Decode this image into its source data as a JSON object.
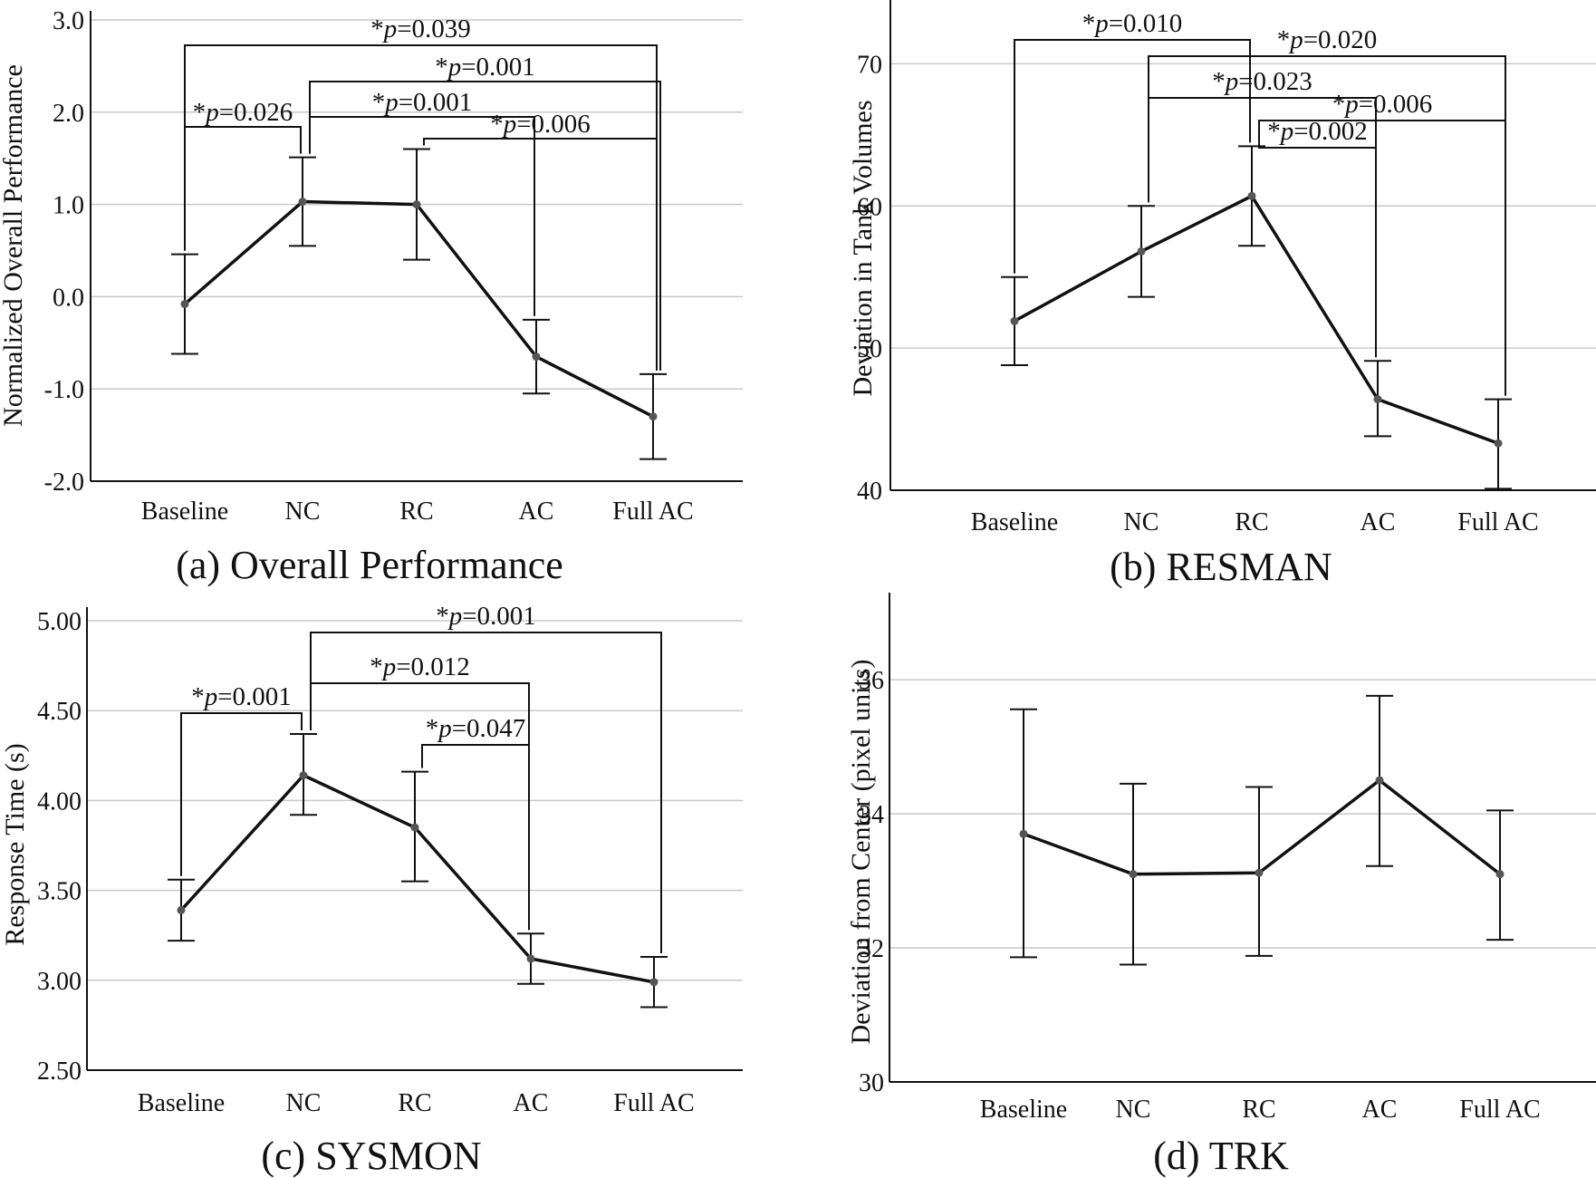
{
  "chart_data": [
    {
      "id": "a",
      "type": "line",
      "caption": "(a) Overall Performance",
      "ylabel": "Normalized Overall Performance",
      "categories": [
        "Baseline",
        "NC",
        "RC",
        "AC",
        "Full AC"
      ],
      "values": [
        -0.08,
        1.03,
        1.0,
        -0.65,
        -1.3
      ],
      "err_low": [
        -0.62,
        0.55,
        0.4,
        -1.05,
        -1.76
      ],
      "err_high": [
        0.46,
        1.51,
        1.6,
        -0.25,
        -0.84
      ],
      "ylim": [
        -2.0,
        3.0
      ],
      "yticks": [
        -2.0,
        -1.0,
        0.0,
        1.0,
        2.0,
        3.0
      ],
      "ytick_labels": [
        "-2.0",
        "-1.0",
        "0.0",
        "1.0",
        "2.0",
        "3.0"
      ],
      "grid": true,
      "annotations": [
        {
          "from": 0,
          "to": 1,
          "star": "*",
          "p": "p",
          "text": "=0.026"
        },
        {
          "from": 1,
          "to": 3,
          "star": "*",
          "p": "p",
          "text": "=0.001"
        },
        {
          "from": 2,
          "to": 4,
          "star": "*",
          "p": "p",
          "text": "=0.006"
        },
        {
          "from": 1,
          "to": 4,
          "star": "*",
          "p": "p",
          "text": "=0.001"
        },
        {
          "from": 0,
          "to": 4,
          "star": "*",
          "p": "p",
          "text": "=0.039"
        }
      ]
    },
    {
      "id": "b",
      "type": "line",
      "caption": "(b) RESMAN",
      "ylabel": "Deviation in Tank Volumes",
      "categories": [
        "Baseline",
        "NC",
        "RC",
        "AC",
        "Full AC"
      ],
      "values": [
        51.9,
        56.8,
        60.7,
        46.4,
        43.3
      ],
      "err_low": [
        48.8,
        53.6,
        57.2,
        43.8,
        40.1
      ],
      "err_high": [
        55.0,
        60.0,
        64.2,
        49.1,
        46.4
      ],
      "ylim": [
        40,
        75
      ],
      "yticks": [
        40,
        50,
        60,
        70
      ],
      "ytick_labels": [
        "40",
        "50",
        "60",
        "70"
      ],
      "grid": true,
      "annotations": [
        {
          "from": 0,
          "to": 2,
          "star": "*",
          "p": "p",
          "text": "=0.010"
        },
        {
          "from": 1,
          "to": 4,
          "star": "*",
          "p": "p",
          "text": "=0.020"
        },
        {
          "from": 1,
          "to": 3,
          "star": "*",
          "p": "p",
          "text": "=0.023"
        },
        {
          "from": 2,
          "to": 4,
          "star": "*",
          "p": "p",
          "text": "=0.006"
        },
        {
          "from": 2,
          "to": 3,
          "star": "*",
          "p": "p",
          "text": "=0.002"
        }
      ]
    },
    {
      "id": "c",
      "type": "line",
      "caption": "(c) SYSMON",
      "ylabel": "Response Time (s)",
      "categories": [
        "Baseline",
        "NC",
        "RC",
        "AC",
        "Full AC"
      ],
      "values": [
        3.39,
        4.14,
        3.85,
        3.12,
        2.99
      ],
      "err_low": [
        3.22,
        3.92,
        3.55,
        2.98,
        2.85
      ],
      "err_high": [
        3.56,
        4.37,
        4.16,
        3.26,
        3.13
      ],
      "ylim": [
        2.5,
        5.0
      ],
      "yticks": [
        2.5,
        3.0,
        3.5,
        4.0,
        4.5,
        5.0
      ],
      "ytick_labels": [
        "2.50",
        "3.00",
        "3.50",
        "4.00",
        "4.50",
        "5.00"
      ],
      "grid": true,
      "annotations": [
        {
          "from": 0,
          "to": 1,
          "star": "*",
          "p": "p",
          "text": "=0.001"
        },
        {
          "from": 1,
          "to": 3,
          "star": "*",
          "p": "p",
          "text": "=0.012"
        },
        {
          "from": 2,
          "to": 3,
          "star": "*",
          "p": "p",
          "text": "=0.047"
        },
        {
          "from": 1,
          "to": 4,
          "star": "*",
          "p": "p",
          "text": "=0.001"
        }
      ]
    },
    {
      "id": "d",
      "type": "line",
      "caption": "(d) TRK",
      "ylabel": "Deviation from Center (pixel units)",
      "categories": [
        "Baseline",
        "NC",
        "RC",
        "AC",
        "Full AC"
      ],
      "values": [
        33.7,
        33.1,
        33.12,
        34.5,
        33.1
      ],
      "err_low": [
        31.86,
        31.75,
        31.88,
        33.22,
        32.12
      ],
      "err_high": [
        35.56,
        34.45,
        34.4,
        35.76,
        34.05
      ],
      "ylim": [
        30,
        37.3
      ],
      "yticks": [
        30,
        32,
        34,
        36
      ],
      "ytick_labels": [
        "30",
        "32",
        "34",
        "36"
      ],
      "grid": true,
      "annotations": []
    }
  ]
}
